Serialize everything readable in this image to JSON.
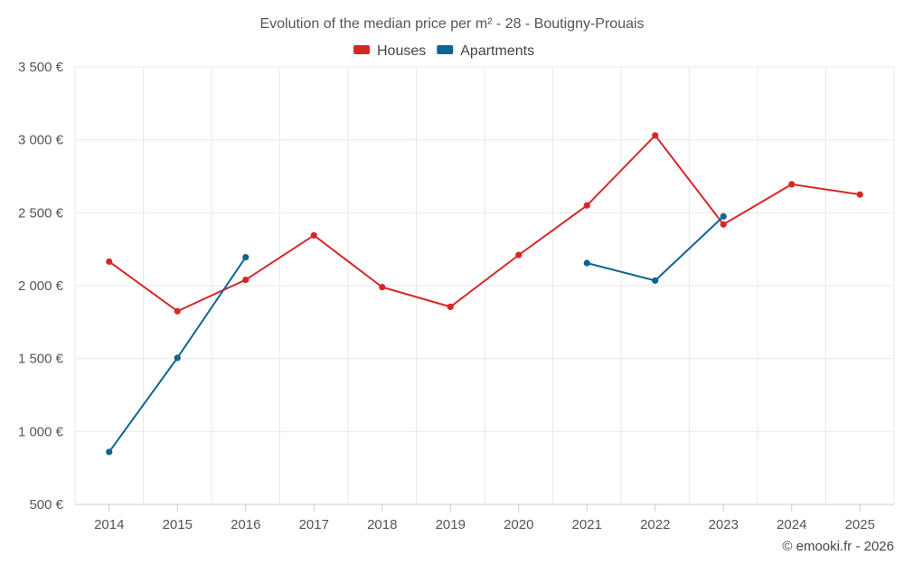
{
  "chart_data": {
    "type": "line",
    "title": "Evolution of the median price per m² - 28 - Boutigny-Prouais",
    "xlabel": "",
    "ylabel": "",
    "categories": [
      "2014",
      "2015",
      "2016",
      "2017",
      "2018",
      "2019",
      "2020",
      "2021",
      "2022",
      "2023",
      "2024",
      "2025"
    ],
    "ylim": [
      500,
      3500
    ],
    "yticks": [
      500,
      1000,
      1500,
      2000,
      2500,
      3000,
      3500
    ],
    "ytick_labels": [
      "500 €",
      "1 000 €",
      "1 500 €",
      "2 000 €",
      "2 500 €",
      "3 000 €",
      "3 500 €"
    ],
    "grid": true,
    "legend_position": "top-center",
    "series": [
      {
        "name": "Houses",
        "color": "#d62728",
        "values": [
          2165,
          1825,
          2040,
          2345,
          1990,
          1855,
          2210,
          2550,
          3030,
          2420,
          2695,
          2625
        ]
      },
      {
        "name": "Apartments",
        "color": "#0e6591",
        "values": [
          860,
          1505,
          2195,
          null,
          null,
          null,
          null,
          2155,
          2035,
          2475,
          null,
          null
        ]
      }
    ],
    "credit": "© emooki.fr - 2026"
  }
}
